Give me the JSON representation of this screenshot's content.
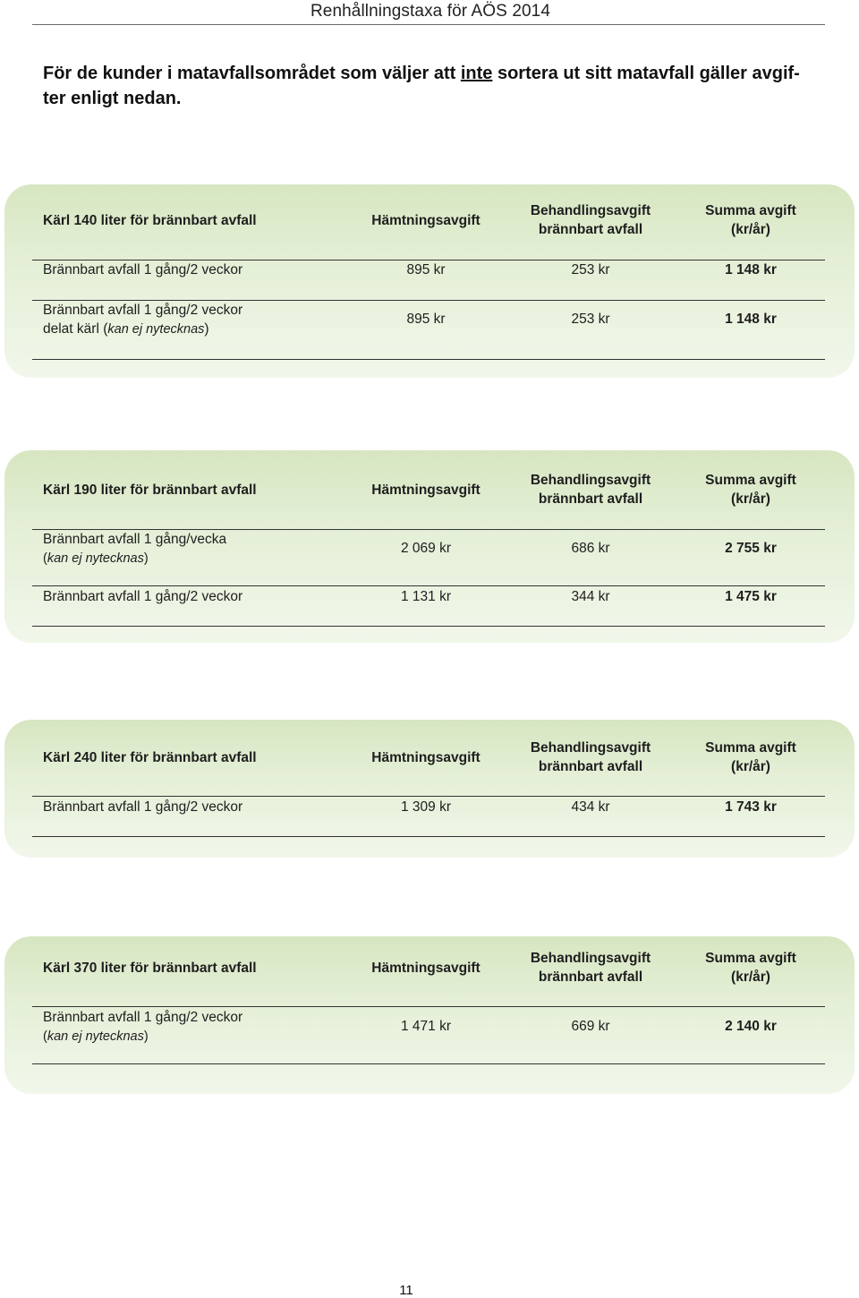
{
  "header": {
    "title": "Renhållningstaxa för AÖS 2014"
  },
  "intro": {
    "before": "För de kunder i matavfallsområdet som väljer att ",
    "emph": "inte",
    "after": " sortera ut sitt matavfall gäller avgif-ter enligt nedan."
  },
  "tables": [
    {
      "title": "Kärl 140 liter för brännbart avfall",
      "col_pickup": "Hämtningsavgift",
      "col_treatment_1": "Behandlingsavgift",
      "col_treatment_2": "brännbart avfall",
      "col_total_1": "Summa avgift",
      "col_total_2": "(kr/år)",
      "rows": [
        {
          "label": "Brännbart avfall 1 gång/2 veckor",
          "pickup": "895 kr",
          "treatment": "253 kr",
          "total": "1 148 kr"
        },
        {
          "label": "Brännbart avfall 1 gång/2 veckor",
          "label_2": "delat kärl (",
          "note": "kan ej nytecknas",
          "note_end": ")",
          "pickup": "895 kr",
          "treatment": "253 kr",
          "total": "1 148 kr"
        }
      ]
    },
    {
      "title": "Kärl 190 liter för brännbart avfall",
      "col_pickup": "Hämtningsavgift",
      "col_treatment_1": "Behandlingsavgift",
      "col_treatment_2": "brännbart avfall",
      "col_total_1": "Summa avgift",
      "col_total_2": "(kr/år)",
      "rows": [
        {
          "label": "Brännbart avfall 1 gång/vecka",
          "note_open": "(",
          "note": "kan ej nytecknas",
          "note_end": ")",
          "pickup": "2 069 kr",
          "treatment": "686 kr",
          "total": "2 755 kr"
        },
        {
          "label": "Brännbart avfall 1 gång/2 veckor",
          "pickup": "1 131 kr",
          "treatment": "344 kr",
          "total": "1 475 kr"
        }
      ]
    },
    {
      "title": "Kärl 240 liter för brännbart avfall",
      "col_pickup": "Hämtningsavgift",
      "col_treatment_1": "Behandlingsavgift",
      "col_treatment_2": "brännbart avfall",
      "col_total_1": "Summa avgift",
      "col_total_2": "(kr/år)",
      "rows": [
        {
          "label": "Brännbart avfall 1 gång/2 veckor",
          "pickup": "1 309 kr",
          "treatment": "434 kr",
          "total": "1 743 kr"
        }
      ]
    },
    {
      "title": "Kärl 370 liter för brännbart avfall",
      "col_pickup": "Hämtningsavgift",
      "col_treatment_1": "Behandlingsavgift",
      "col_treatment_2": "brännbart avfall",
      "col_total_1": "Summa avgift",
      "col_total_2": "(kr/år)",
      "rows": [
        {
          "label": "Brännbart avfall 1 gång/2 veckor",
          "note_open": "(",
          "note": "kan ej nytecknas",
          "note_end": ")",
          "pickup": "1 471 kr",
          "treatment": "669 kr",
          "total": "2 140 kr"
        }
      ]
    }
  ],
  "footer": {
    "page_number": "11"
  }
}
